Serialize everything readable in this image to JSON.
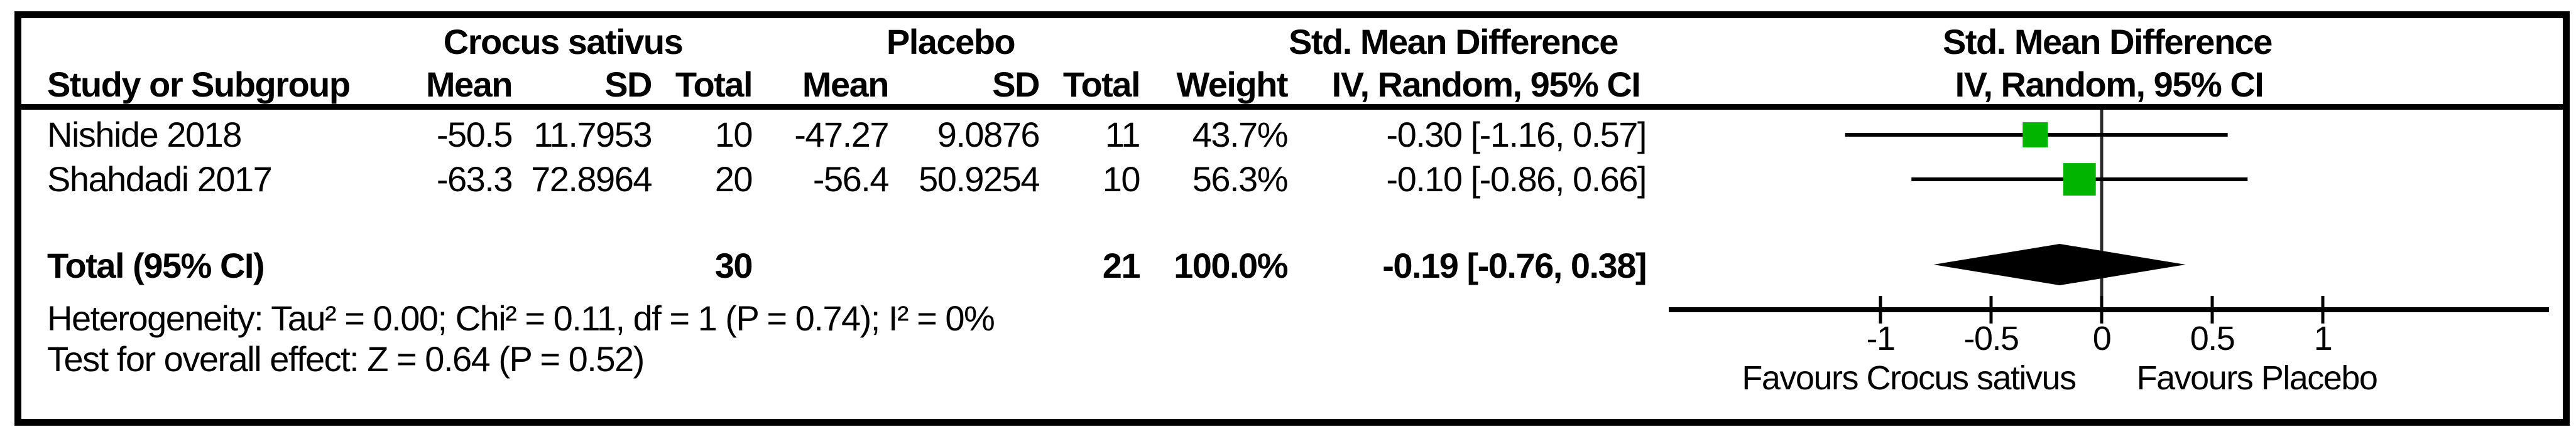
{
  "table": {
    "group_headers": {
      "treatment": "Crocus sativus",
      "control": "Placebo",
      "effect": "Std. Mean Difference",
      "effect_plot": "Std. Mean Difference"
    },
    "column_headers": {
      "study": "Study or Subgroup",
      "t_mean": "Mean",
      "t_sd": "SD",
      "t_total": "Total",
      "c_mean": "Mean",
      "c_sd": "SD",
      "c_total": "Total",
      "weight": "Weight",
      "effect_ci": "IV, Random, 95% CI",
      "effect_ci_plot": "IV, Random, 95% CI"
    },
    "rows": [
      {
        "study": "Nishide 2018",
        "t_mean": "-50.5",
        "t_sd": "11.7953",
        "t_total": "10",
        "c_mean": "-47.27",
        "c_sd": "9.0876",
        "c_total": "11",
        "weight": "43.7%",
        "effect_ci": "-0.30 [-1.16, 0.57]"
      },
      {
        "study": "Shahdadi 2017",
        "t_mean": "-63.3",
        "t_sd": "72.8964",
        "t_total": "20",
        "c_mean": "-56.4",
        "c_sd": "50.9254",
        "c_total": "10",
        "weight": "56.3%",
        "effect_ci": "-0.10 [-0.86, 0.66]"
      }
    ],
    "total_row": {
      "label": "Total (95% CI)",
      "t_total": "30",
      "c_total": "21",
      "weight": "100.0%",
      "effect_ci": "-0.19 [-0.76, 0.38]"
    },
    "footnotes": {
      "heterogeneity": "Heterogeneity: Tau² = 0.00; Chi² = 0.11, df = 1 (P = 0.74); I² = 0%",
      "overall_effect": "Test for overall effect: Z = 0.64 (P = 0.52)"
    }
  },
  "chart_data": {
    "type": "forest",
    "title": "Std. Mean Difference, IV, Random, 95% CI",
    "x_axis": {
      "ticks": [
        -1,
        -0.5,
        0,
        0.5,
        1
      ],
      "tick_labels": [
        "-1",
        "-0.5",
        "0",
        "0.5",
        "1"
      ],
      "range": [
        -1.96,
        2.02
      ],
      "zero_line": 0,
      "left_label": "Favours Crocus sativus",
      "right_label": "Favours Placebo"
    },
    "studies": [
      {
        "name": "Nishide 2018",
        "smd": -0.3,
        "ci_low": -1.16,
        "ci_high": 0.57,
        "weight_pct": 43.7
      },
      {
        "name": "Shahdadi 2017",
        "smd": -0.1,
        "ci_low": -0.86,
        "ci_high": 0.66,
        "weight_pct": 56.3
      }
    ],
    "total": {
      "label": "Total (95% CI)",
      "smd": -0.19,
      "ci_low": -0.76,
      "ci_high": 0.38,
      "weight_pct": 100.0
    },
    "colors": {
      "square": "#00b400",
      "line": "#000000",
      "diamond": "#000000"
    }
  }
}
